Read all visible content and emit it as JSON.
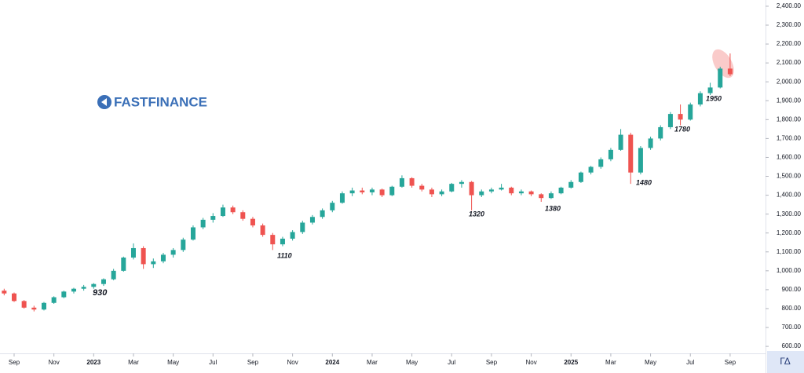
{
  "logo": "FASTFINANCE",
  "badge": "ΓΔ",
  "chart_data": {
    "type": "candlestick",
    "up_color": "#26a69a",
    "down_color": "#ef5350",
    "xlim": [
      -0.71,
      37.78
    ],
    "ylim": [
      563,
      2433
    ],
    "xticks": [
      {
        "value": 0,
        "label": "Sep"
      },
      {
        "value": 2,
        "label": "Nov"
      },
      {
        "value": 4,
        "label": "2023"
      },
      {
        "value": 6,
        "label": "Mar"
      },
      {
        "value": 8,
        "label": "May"
      },
      {
        "value": 10,
        "label": "Jul"
      },
      {
        "value": 12,
        "label": "Sep"
      },
      {
        "value": 14,
        "label": "Nov"
      },
      {
        "value": 16,
        "label": "2024"
      },
      {
        "value": 18,
        "label": "Mar"
      },
      {
        "value": 20,
        "label": "May"
      },
      {
        "value": 22,
        "label": "Jul"
      },
      {
        "value": 24,
        "label": "Sep"
      },
      {
        "value": 26,
        "label": "Nov"
      },
      {
        "value": 28,
        "label": "2025"
      },
      {
        "value": 30,
        "label": "Mar"
      },
      {
        "value": 32,
        "label": "May"
      },
      {
        "value": 34,
        "label": "Jul"
      },
      {
        "value": 36,
        "label": "Sep"
      }
    ],
    "yticks": [
      {
        "value": 600,
        "label": "600.00"
      },
      {
        "value": 700,
        "label": "700.00"
      },
      {
        "value": 800,
        "label": "800.00"
      },
      {
        "value": 900,
        "label": "900.00"
      },
      {
        "value": 1000,
        "label": "1,000.00"
      },
      {
        "value": 1100,
        "label": "1,100.00"
      },
      {
        "value": 1200,
        "label": "1,200.00"
      },
      {
        "value": 1300,
        "label": "1,300.00"
      },
      {
        "value": 1400,
        "label": "1,400.00"
      },
      {
        "value": 1500,
        "label": "1,500.00"
      },
      {
        "value": 1600,
        "label": "1,600.00"
      },
      {
        "value": 1700,
        "label": "1,700.00"
      },
      {
        "value": 1800,
        "label": "1,800.00"
      },
      {
        "value": 1900,
        "label": "1,900.00"
      },
      {
        "value": 2000,
        "label": "2,000.00"
      },
      {
        "value": 2100,
        "label": "2,100.00"
      },
      {
        "value": 2200,
        "label": "2,200.00"
      },
      {
        "value": 2300,
        "label": "2,300.00"
      },
      {
        "value": 2400,
        "label": "2,400.00"
      }
    ],
    "annotations": [
      "930",
      "1110",
      "1320",
      "1380",
      "1480",
      "1780",
      "1950"
    ],
    "x": [
      -0.5,
      0,
      0.5,
      1,
      1.5,
      2,
      2.5,
      3,
      3.5,
      4,
      4.5,
      5,
      5.5,
      6,
      6.5,
      7,
      7.5,
      8,
      8.5,
      9,
      9.5,
      10,
      10.5,
      11,
      11.5,
      12,
      12.5,
      13,
      13.5,
      14,
      14.5,
      15,
      15.5,
      16,
      16.5,
      17,
      17.5,
      18,
      18.5,
      19,
      19.5,
      20,
      20.5,
      21,
      21.5,
      22,
      22.5,
      23,
      23.5,
      24,
      24.5,
      25,
      25.5,
      26,
      26.5,
      27,
      27.5,
      28,
      28.5,
      29,
      29.5,
      30,
      30.5,
      31,
      31.5,
      32,
      32.5,
      33,
      33.5,
      34,
      34.5,
      35,
      35.5,
      36
    ],
    "open": [
      895,
      880,
      840,
      805,
      795,
      830,
      860,
      890,
      905,
      915,
      930,
      955,
      1000,
      1070,
      1120,
      1035,
      1050,
      1085,
      1110,
      1165,
      1230,
      1270,
      1290,
      1335,
      1310,
      1275,
      1240,
      1190,
      1140,
      1170,
      1205,
      1255,
      1285,
      1320,
      1360,
      1410,
      1425,
      1415,
      1430,
      1400,
      1445,
      1490,
      1450,
      1430,
      1405,
      1420,
      1460,
      1470,
      1400,
      1420,
      1430,
      1440,
      1410,
      1420,
      1405,
      1385,
      1410,
      1440,
      1470,
      1520,
      1550,
      1590,
      1640,
      1720,
      1520,
      1650,
      1700,
      1760,
      1830,
      1800,
      1880,
      1940,
      1970,
      2070
    ],
    "high": [
      905,
      885,
      845,
      815,
      835,
      865,
      895,
      910,
      925,
      935,
      960,
      1010,
      1075,
      1145,
      1130,
      1065,
      1095,
      1120,
      1175,
      1240,
      1280,
      1305,
      1350,
      1345,
      1320,
      1285,
      1250,
      1200,
      1180,
      1215,
      1265,
      1295,
      1330,
      1370,
      1420,
      1440,
      1440,
      1440,
      1435,
      1450,
      1505,
      1495,
      1460,
      1440,
      1430,
      1465,
      1480,
      1475,
      1430,
      1440,
      1460,
      1445,
      1430,
      1425,
      1410,
      1420,
      1445,
      1480,
      1525,
      1555,
      1600,
      1650,
      1750,
      1730,
      1660,
      1710,
      1770,
      1840,
      1880,
      1890,
      1950,
      1995,
      2080,
      2150
    ],
    "low": [
      870,
      835,
      800,
      785,
      790,
      825,
      855,
      880,
      895,
      905,
      920,
      950,
      995,
      1060,
      1010,
      1015,
      1040,
      1070,
      1100,
      1160,
      1220,
      1255,
      1285,
      1300,
      1265,
      1230,
      1180,
      1110,
      1130,
      1160,
      1195,
      1245,
      1275,
      1310,
      1355,
      1395,
      1405,
      1400,
      1390,
      1395,
      1440,
      1440,
      1420,
      1390,
      1395,
      1415,
      1440,
      1320,
      1390,
      1410,
      1425,
      1400,
      1400,
      1395,
      1365,
      1380,
      1405,
      1435,
      1465,
      1510,
      1540,
      1580,
      1635,
      1460,
      1510,
      1640,
      1690,
      1750,
      1770,
      1795,
      1870,
      1930,
      1965,
      2030
    ],
    "close": [
      880,
      840,
      805,
      795,
      830,
      860,
      890,
      905,
      915,
      930,
      955,
      1000,
      1070,
      1120,
      1035,
      1050,
      1085,
      1110,
      1165,
      1230,
      1270,
      1290,
      1335,
      1310,
      1275,
      1240,
      1190,
      1140,
      1170,
      1205,
      1255,
      1285,
      1320,
      1360,
      1410,
      1425,
      1415,
      1430,
      1400,
      1445,
      1490,
      1450,
      1430,
      1405,
      1420,
      1460,
      1470,
      1400,
      1420,
      1430,
      1440,
      1410,
      1420,
      1405,
      1385,
      1410,
      1440,
      1470,
      1520,
      1550,
      1590,
      1640,
      1720,
      1520,
      1650,
      1700,
      1760,
      1830,
      1800,
      1880,
      1940,
      1970,
      2070,
      2040
    ]
  }
}
